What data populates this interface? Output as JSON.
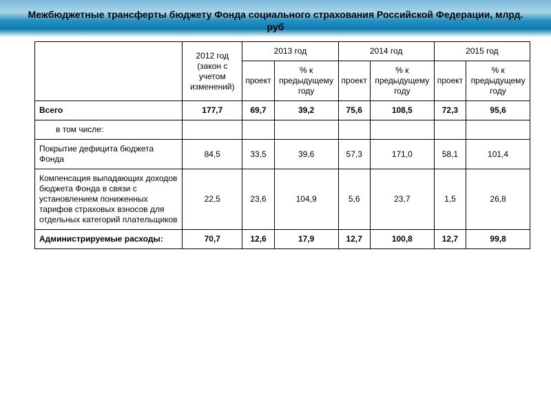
{
  "title": "Межбюджетные трансферты бюджету Фонда социального страхования Российской Федерации, млрд. руб",
  "table": {
    "headers": {
      "y2012": "2012 год (закон с учетом изменений)",
      "y2013": "2013 год",
      "y2014": "2014 год",
      "y2015": "2015 год",
      "proekt": "проект",
      "pct": "% к предыдущему году"
    },
    "rows": {
      "total": {
        "label": "Всего",
        "v12": "177,7",
        "p13": "69,7",
        "pct13": "39,2",
        "p14": "75,6",
        "pct14": "108,5",
        "p15": "72,3",
        "pct15": "95,6"
      },
      "vtomchisle": {
        "label": "в том числе:"
      },
      "deficit": {
        "label": "Покрытие дефицита бюджета Фонда",
        "v12": "84,5",
        "p13": "33,5",
        "pct13": "39,6",
        "p14": "57,3",
        "pct14": "171,0",
        "p15": "58,1",
        "pct15": "101,4"
      },
      "compensation": {
        "label": "Компенсация выпадающих доходов бюджета Фонда в связи с установлением пониженных тарифов страховых взносов для отдельных категорий плательщиков",
        "v12": "22,5",
        "p13": "23,6",
        "pct13": "104,9",
        "p14": "5,6",
        "pct14": "23,7",
        "p15": "1,5",
        "pct15": "26,8"
      },
      "admin": {
        "label": "Администрируемые расходы:",
        "v12": "70,7",
        "p13": "12,6",
        "pct13": "17,9",
        "p14": "12,7",
        "pct14": "100,8",
        "p15": "12,7",
        "pct15": "99,8"
      }
    },
    "styling": {
      "border_color": "#000000",
      "background_color": "#ffffff",
      "header_fontsize": 12,
      "cell_fontsize": 12,
      "title_fontsize": 14,
      "col_widths_pct": [
        22,
        10,
        9,
        10,
        9,
        10,
        9,
        10
      ]
    }
  },
  "background": {
    "gradient": [
      "#7fb8d8",
      "#a8d4e8",
      "#2590c4",
      "#0d7aac",
      "#ffffff"
    ]
  }
}
